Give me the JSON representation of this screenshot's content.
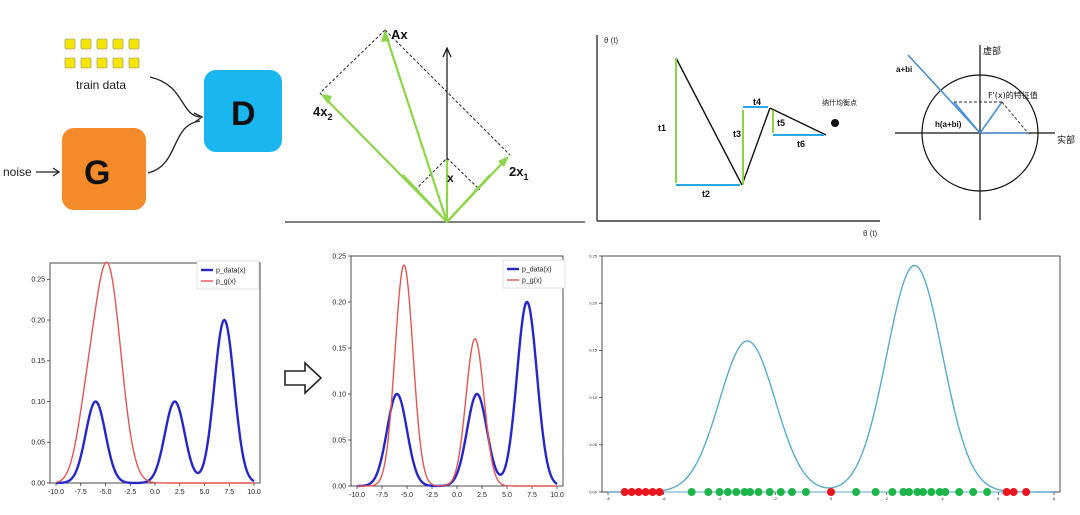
{
  "gan": {
    "train_data": "train data",
    "noise": "noise",
    "generator": "G",
    "discriminator": "D",
    "colors": {
      "generator": "#f58a2a",
      "discriminator": "#19b6f0",
      "dots": "#f5e600"
    }
  },
  "vectors": {
    "ax": "Ax",
    "x": "x",
    "two_x1": "2x",
    "two_x1_sub": "1",
    "four_x2": "4x",
    "four_x2_sub": "2",
    "colors": {
      "green": "#8ed44a",
      "black": "#000000"
    }
  },
  "steps": {
    "theta_y": "θ (t)",
    "theta_x": "θ (t)",
    "t1": "t1",
    "t2": "t2",
    "t3": "t3",
    "t4": "t4",
    "t5": "t5",
    "t6": "t6",
    "point_label": "纳什均衡点",
    "colors": {
      "green": "#8ed44a",
      "blue": "#29a8e8"
    }
  },
  "complex": {
    "imag_axis": "虚部",
    "real_axis": "实部",
    "a_bi": "a+bi",
    "h_abi": "h(a+bi)",
    "fx_label": "F'(x)的特征值"
  },
  "arrow_symbol": "⇨",
  "chart_data": [
    {
      "type": "line",
      "xlim": [
        -10,
        10
      ],
      "ylim": [
        0,
        0.27
      ],
      "xticks": [
        "-10.0",
        "-7.5",
        "-5.0",
        "-2.5",
        "0.0",
        "2.5",
        "5.0",
        "7.5",
        "10.0"
      ],
      "yticks": [
        "0.00",
        "0.05",
        "0.10",
        "0.15",
        "0.20",
        "0.25"
      ],
      "series": [
        {
          "name": "p_data(x)",
          "color": "#2727c8",
          "components": [
            {
              "mu": -6,
              "sigma": 1,
              "peak": 0.1
            },
            {
              "mu": 2,
              "sigma": 1,
              "peak": 0.1
            },
            {
              "mu": 7,
              "sigma": 1,
              "peak": 0.2
            }
          ]
        },
        {
          "name": "p_g(x)",
          "color": "#e05656",
          "components": [
            {
              "mu": -4.8,
              "sigma": 1.35,
              "peak": 0.265
            },
            {
              "mu": -7,
              "sigma": 1,
              "peak": 0.06
            }
          ]
        }
      ]
    },
    {
      "type": "line",
      "xlim": [
        -10,
        10
      ],
      "ylim": [
        0,
        0.25
      ],
      "xticks": [
        "-10.0",
        "-7.5",
        "-5.0",
        "-2.5",
        "0.0",
        "2.5",
        "5.0",
        "7.5",
        "10.0"
      ],
      "yticks": [
        "0.00",
        "0.05",
        "0.10",
        "0.15",
        "0.20",
        "0.25"
      ],
      "series": [
        {
          "name": "p_data(x)",
          "color": "#2727c8",
          "components": [
            {
              "mu": -6,
              "sigma": 1,
              "peak": 0.1
            },
            {
              "mu": 2,
              "sigma": 1,
              "peak": 0.1
            },
            {
              "mu": 7,
              "sigma": 1,
              "peak": 0.2
            }
          ]
        },
        {
          "name": "p_g(x)",
          "color": "#e05656",
          "components": [
            {
              "mu": -5.3,
              "sigma": 0.9,
              "peak": 0.24
            },
            {
              "mu": 1.8,
              "sigma": 0.9,
              "peak": 0.16
            }
          ]
        }
      ]
    },
    {
      "type": "line",
      "xlim": [
        -8,
        8
      ],
      "ylim": [
        0,
        0.25
      ],
      "xticks": [
        "-8",
        "-6",
        "-4",
        "-2",
        "0",
        "2",
        "4",
        "6",
        "8"
      ],
      "yticks": [
        "0.00",
        "0.05",
        "0.10",
        "0.15",
        "0.20",
        "0.25"
      ],
      "series": [
        {
          "color": "#5aaac8",
          "components": [
            {
              "mu": -3,
              "sigma": 1,
              "peak": 0.16
            },
            {
              "mu": 3,
              "sigma": 1,
              "peak": 0.24
            }
          ]
        }
      ],
      "points": {
        "red": [
          -7.4,
          -7.15,
          -6.9,
          -6.65,
          -6.4,
          -6.15,
          0,
          6.3,
          6.55,
          7.0
        ],
        "green": [
          -5.0,
          -4.4,
          -4.0,
          -3.7,
          -3.4,
          -3.1,
          -2.9,
          -2.6,
          -2.2,
          -1.8,
          -1.4,
          -0.9,
          0.9,
          1.6,
          2.2,
          2.6,
          2.8,
          3.1,
          3.3,
          3.6,
          3.9,
          4.1,
          4.6,
          5.1,
          5.6
        ]
      }
    }
  ]
}
